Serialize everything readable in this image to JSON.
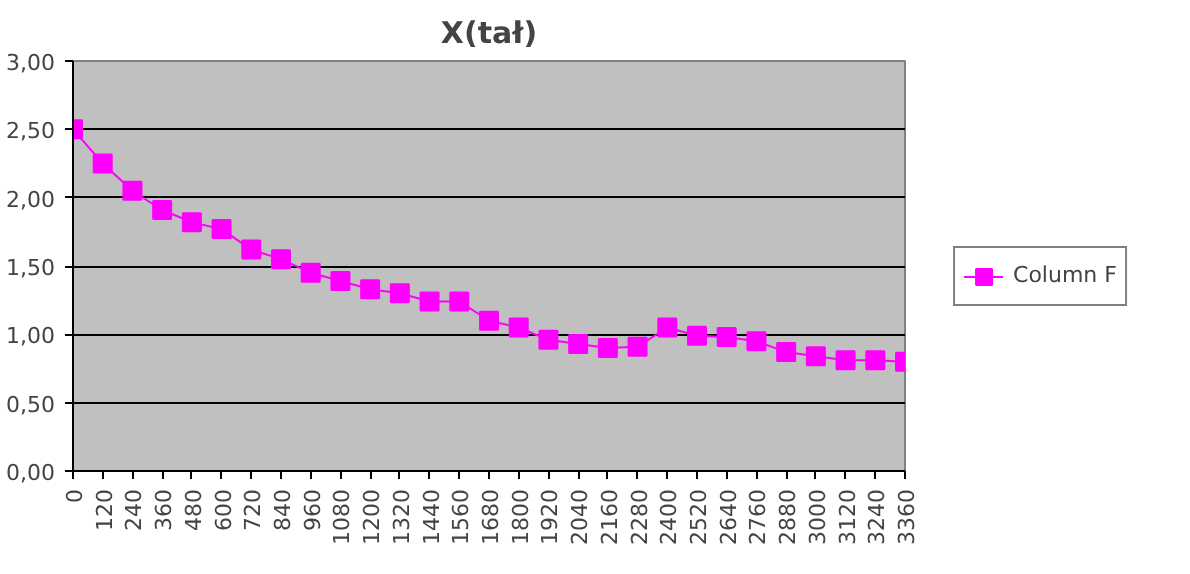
{
  "chart_data": {
    "type": "line",
    "title": "X(tał)",
    "categories": [
      "0",
      "120",
      "240",
      "360",
      "480",
      "600",
      "720",
      "840",
      "960",
      "1080",
      "1200",
      "1320",
      "1440",
      "1560",
      "1680",
      "1800",
      "1920",
      "2040",
      "2160",
      "2280",
      "2400",
      "2520",
      "2640",
      "2760",
      "2880",
      "3000",
      "3120",
      "3240",
      "3360"
    ],
    "series": [
      {
        "name": "Column F",
        "color": "#ff00ff",
        "values": [
          2.5,
          2.25,
          2.05,
          1.91,
          1.82,
          1.77,
          1.62,
          1.55,
          1.45,
          1.39,
          1.33,
          1.3,
          1.24,
          1.24,
          1.1,
          1.05,
          0.96,
          0.93,
          0.9,
          0.91,
          1.05,
          0.99,
          0.98,
          0.95,
          0.87,
          0.84,
          0.81,
          0.81,
          0.8
        ]
      }
    ],
    "ylim": [
      0,
      3
    ],
    "yticks": [
      {
        "value": 0,
        "label": "0,00"
      },
      {
        "value": 0.5,
        "label": "0,50"
      },
      {
        "value": 1,
        "label": "1,00"
      },
      {
        "value": 1.5,
        "label": "1,50"
      },
      {
        "value": 2,
        "label": "2,00"
      },
      {
        "value": 2.5,
        "label": "2,50"
      },
      {
        "value": 3,
        "label": "3,00"
      }
    ],
    "grid": "y",
    "legend": "right",
    "marker": "square",
    "line_style": "solid"
  }
}
